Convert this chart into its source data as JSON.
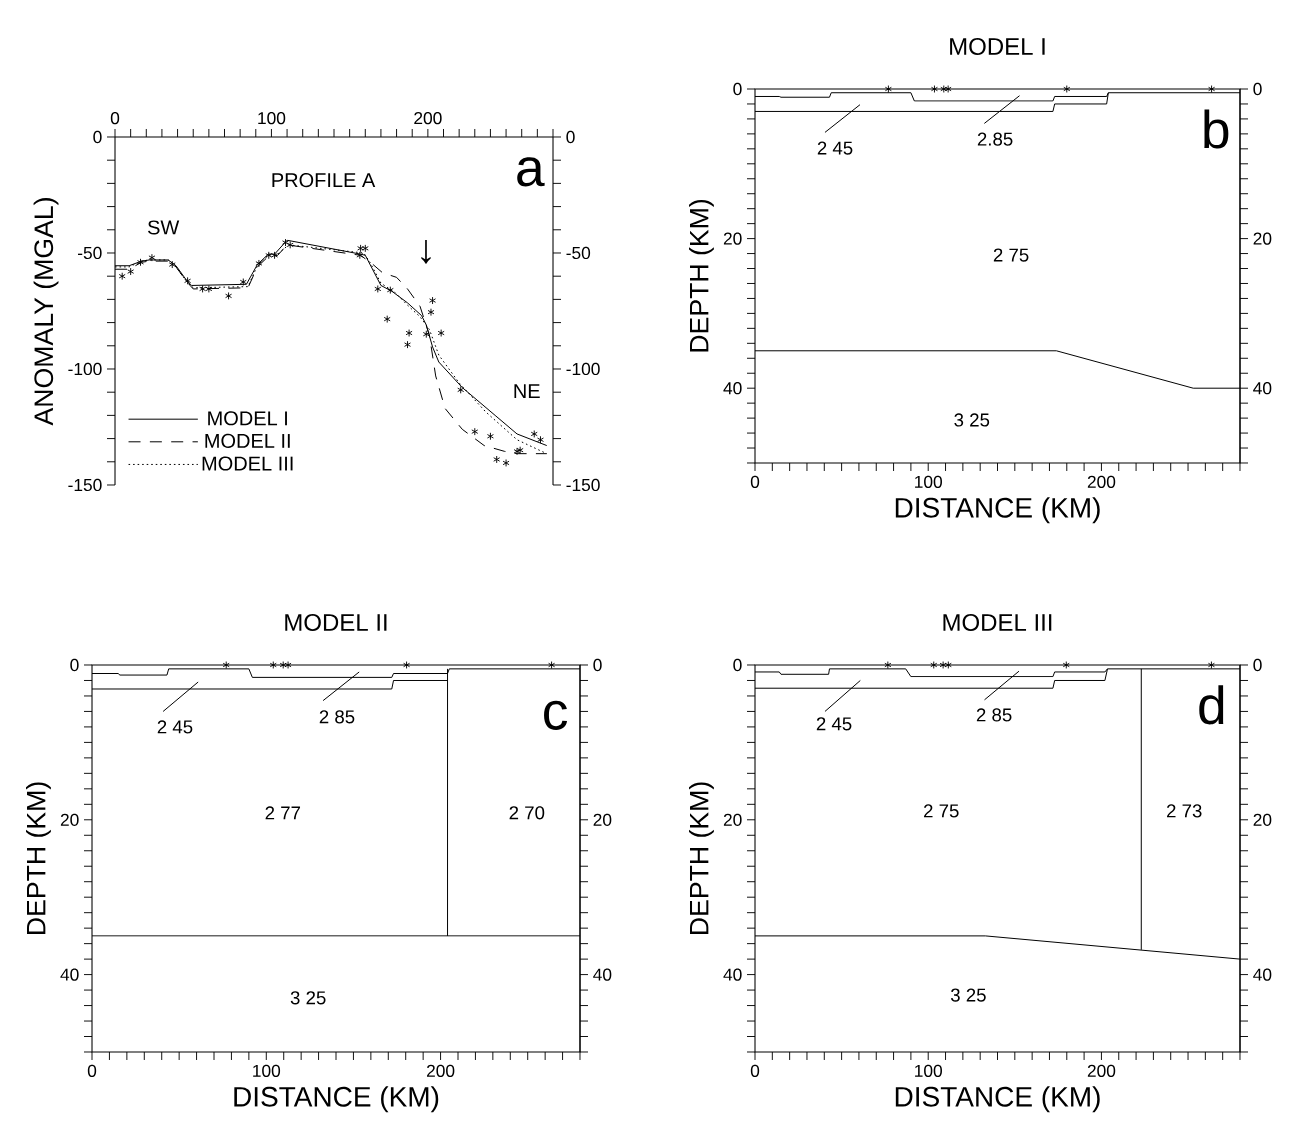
{
  "chart_data": [
    {
      "type": "line",
      "ylabel": "ANOMALY (MGAL)",
      "legend": "bottom left",
      "xlim": [
        0,
        280
      ],
      "xticks": [
        0,
        {
          "value": 10,
          "label": null
        },
        {
          "value": 20,
          "label": null
        },
        {
          "value": 30,
          "label": null
        },
        {
          "value": 40,
          "label": null
        },
        {
          "value": 50,
          "label": null
        },
        {
          "value": 60,
          "label": null
        },
        {
          "value": 70,
          "label": null
        },
        {
          "value": 80,
          "label": null
        },
        {
          "value": 90,
          "label": null
        },
        100,
        {
          "value": 110,
          "label": null
        },
        {
          "value": 120,
          "label": null
        },
        {
          "value": 130,
          "label": null
        },
        {
          "value": 140,
          "label": null
        },
        {
          "value": 150,
          "label": null
        },
        {
          "value": 160,
          "label": null
        },
        {
          "value": 170,
          "label": null
        },
        {
          "value": 180,
          "label": null
        },
        {
          "value": 190,
          "label": null
        },
        200,
        {
          "value": 210,
          "label": null
        },
        {
          "value": 220,
          "label": null
        },
        {
          "value": 230,
          "label": null
        },
        {
          "value": 240,
          "label": null
        },
        {
          "value": 250,
          "label": null
        },
        {
          "value": 260,
          "label": null
        },
        {
          "value": 270,
          "label": null
        },
        {
          "value": 280,
          "label": null
        }
      ],
      "ylim": [
        -150,
        0
      ],
      "yticks": [
        -150,
        {
          "value": -140,
          "label": null
        },
        {
          "value": -130,
          "label": null
        },
        {
          "value": -120,
          "label": null
        },
        {
          "value": -110,
          "label": null
        },
        -100,
        {
          "value": -90,
          "label": null
        },
        {
          "value": -80,
          "label": null
        },
        {
          "value": -70,
          "label": null
        },
        {
          "value": -60,
          "label": null
        },
        -50,
        {
          "value": -40,
          "label": null
        },
        {
          "value": -30,
          "label": null
        },
        {
          "value": -20,
          "label": null
        },
        {
          "value": -10,
          "label": null
        },
        0
      ],
      "y2lim": [
        -150,
        0
      ],
      "y2ticks": [
        -150,
        {
          "value": -140,
          "label": null
        },
        {
          "value": -130,
          "label": null
        },
        {
          "value": -120,
          "label": null
        },
        {
          "value": -110,
          "label": null
        },
        -100,
        {
          "value": -90,
          "label": null
        },
        {
          "value": -80,
          "label": null
        },
        {
          "value": -70,
          "label": null
        },
        {
          "value": -60,
          "label": null
        },
        -50,
        {
          "value": -40,
          "label": null
        },
        {
          "value": -30,
          "label": null
        },
        {
          "value": -20,
          "label": null
        },
        {
          "value": -10,
          "label": null
        },
        0
      ],
      "series": [
        {
          "name": "MODEL I",
          "color": "#000000",
          "line_style": "solid",
          "x": [
            0,
            9,
            17,
            22,
            34,
            39,
            46,
            49,
            84,
            91,
            98,
            102,
            110,
            157,
            160,
            170,
            177,
            187,
            196,
            199,
            203,
            207,
            222,
            243,
            257,
            276
          ],
          "values": [
            -55.5,
            -55.5,
            -53.5,
            -53,
            -53,
            -55.5,
            -62,
            -64,
            -63.5,
            -55,
            -50.5,
            -50.5,
            -44.5,
            -50.5,
            -51,
            -64,
            -66.5,
            -71.5,
            -77,
            -81,
            -90.5,
            -97,
            -108,
            -120,
            -128,
            -133
          ]
        },
        {
          "name": "MODEL II",
          "color": "#000000",
          "line_style": "dashed",
          "x": [
            0,
            9,
            17,
            22,
            34,
            39,
            46,
            50,
            85,
            91,
            98,
            104,
            110,
            157,
            165,
            171,
            180,
            187,
            195,
            201,
            205,
            211,
            222,
            236,
            249,
            257,
            276
          ],
          "values": [
            -57,
            -57,
            -54,
            -53.5,
            -53.5,
            -56,
            -62.5,
            -65.5,
            -65,
            -56,
            -51.5,
            -51,
            -46.5,
            -51,
            -55,
            -58.5,
            -60.5,
            -65.5,
            -73,
            -85.5,
            -103,
            -117,
            -126,
            -133,
            -135.5,
            -136.5,
            -136.5
          ]
        },
        {
          "name": "MODEL III",
          "color": "#000000",
          "line_style": "dotted",
          "x": [
            0,
            9,
            17,
            22,
            34,
            39,
            46,
            50,
            85,
            91,
            98,
            104,
            111,
            159,
            163,
            170,
            179,
            187,
            195,
            201,
            207,
            220,
            237,
            257,
            276
          ],
          "values": [
            -56,
            -56,
            -53.5,
            -53,
            -53,
            -56,
            -62.5,
            -65,
            -64.5,
            -55.5,
            -51,
            -50.5,
            -46.5,
            -50,
            -54,
            -63,
            -67,
            -72.5,
            -77.5,
            -83,
            -94,
            -106,
            -118.5,
            -130.5,
            -136.5
          ]
        },
        {
          "type": "scatter",
          "marker": "cross",
          "color": "#000000",
          "x": [
            4.6,
            10,
            16.3,
            23.6,
            36.6,
            46.4,
            56,
            60,
            72.6,
            82,
            92,
            98.3,
            102,
            109,
            112,
            157,
            160,
            156.5,
            168,
            176,
            174,
            188,
            187,
            203,
            202,
            208.5,
            199,
            221,
            230,
            240,
            244,
            250,
            257,
            259,
            268,
            272
          ],
          "values": [
            -60,
            -58,
            -54,
            -52,
            -55,
            -62,
            -65.5,
            -65.5,
            -68.5,
            -62.5,
            -54.5,
            -51,
            -51,
            -45.5,
            -46.5,
            -48,
            -48,
            -51,
            -65.5,
            -66,
            -78.5,
            -84.5,
            -89.5,
            -70.5,
            -75.5,
            -84.5,
            -85,
            -109,
            -127,
            -129,
            -139,
            -140.5,
            -135.5,
            -135,
            -128,
            -130.5
          ]
        }
      ],
      "annotations": [
        "a",
        "PROFILE A",
        "SW",
        "NE",
        "↓"
      ]
    },
    {
      "type": "line",
      "title": "MODEL I",
      "xlabel": "DISTANCE (KM)",
      "ylabel": "DEPTH (KM)",
      "xlim": [
        0,
        280
      ],
      "xticks": [
        0,
        {
          "value": 10,
          "label": null
        },
        {
          "value": 20,
          "label": null
        },
        {
          "value": 30,
          "label": null
        },
        {
          "value": 40,
          "label": null
        },
        {
          "value": 50,
          "label": null
        },
        {
          "value": 60,
          "label": null
        },
        {
          "value": 70,
          "label": null
        },
        {
          "value": 80,
          "label": null
        },
        {
          "value": 90,
          "label": null
        },
        100,
        {
          "value": 110,
          "label": null
        },
        {
          "value": 120,
          "label": null
        },
        {
          "value": 130,
          "label": null
        },
        {
          "value": 140,
          "label": null
        },
        {
          "value": 150,
          "label": null
        },
        {
          "value": 160,
          "label": null
        },
        {
          "value": 170,
          "label": null
        },
        {
          "value": 180,
          "label": null
        },
        {
          "value": 190,
          "label": null
        },
        200,
        {
          "value": 210,
          "label": null
        },
        {
          "value": 220,
          "label": null
        },
        {
          "value": 230,
          "label": null
        },
        {
          "value": 240,
          "label": null
        },
        {
          "value": 250,
          "label": null
        },
        {
          "value": 260,
          "label": null
        },
        {
          "value": 270,
          "label": null
        },
        {
          "value": 280,
          "label": null
        }
      ],
      "ylim": [
        50,
        0
      ],
      "yticks": [
        0,
        {
          "value": 2,
          "label": null
        },
        {
          "value": 4,
          "label": null
        },
        {
          "value": 6,
          "label": null
        },
        {
          "value": 8,
          "label": null
        },
        {
          "value": 10,
          "label": null
        },
        {
          "value": 12,
          "label": null
        },
        {
          "value": 14,
          "label": null
        },
        {
          "value": 16,
          "label": null
        },
        {
          "value": 18,
          "label": null
        },
        20,
        {
          "value": 22,
          "label": null
        },
        {
          "value": 24,
          "label": null
        },
        {
          "value": 26,
          "label": null
        },
        {
          "value": 28,
          "label": null
        },
        {
          "value": 30,
          "label": null
        },
        {
          "value": 32,
          "label": null
        },
        {
          "value": 34,
          "label": null
        },
        {
          "value": 36,
          "label": null
        },
        {
          "value": 38,
          "label": null
        },
        40,
        {
          "value": 42,
          "label": null
        },
        {
          "value": 44,
          "label": null
        },
        {
          "value": 46,
          "label": null
        },
        {
          "value": 48,
          "label": null
        },
        {
          "value": 50,
          "label": null
        }
      ],
      "y2lim": [
        50,
        0
      ],
      "y2ticks": [
        0,
        {
          "value": 2,
          "label": null
        },
        {
          "value": 4,
          "label": null
        },
        {
          "value": 6,
          "label": null
        },
        {
          "value": 8,
          "label": null
        },
        {
          "value": 10,
          "label": null
        },
        {
          "value": 12,
          "label": null
        },
        {
          "value": 14,
          "label": null
        },
        {
          "value": 16,
          "label": null
        },
        {
          "value": 18,
          "label": null
        },
        20,
        {
          "value": 22,
          "label": null
        },
        {
          "value": 24,
          "label": null
        },
        {
          "value": 26,
          "label": null
        },
        {
          "value": 28,
          "label": null
        },
        {
          "value": 30,
          "label": null
        },
        {
          "value": 32,
          "label": null
        },
        {
          "value": 34,
          "label": null
        },
        {
          "value": 36,
          "label": null
        },
        {
          "value": 38,
          "label": null
        },
        40,
        {
          "value": 42,
          "label": null
        },
        {
          "value": 44,
          "label": null
        },
        {
          "value": 46,
          "label": null
        },
        {
          "value": 48,
          "label": null
        },
        {
          "value": 50,
          "label": null
        }
      ],
      "series": [
        {
          "color": "#000000",
          "x": [
            0,
            14,
            15,
            43,
            44,
            90,
            92,
            172,
            173,
            203,
            204,
            280
          ],
          "values": [
            1,
            1,
            1.1,
            1.1,
            0.5,
            0.5,
            1.6,
            1.6,
            1,
            1,
            0.5,
            0.5
          ]
        },
        {
          "color": "#000000",
          "x": [
            0,
            172,
            173,
            203,
            204
          ],
          "values": [
            3,
            3,
            2,
            2,
            0.5
          ]
        },
        {
          "color": "#000000",
          "x": [
            0,
            174,
            253,
            280
          ],
          "values": [
            35,
            35,
            40,
            40
          ]
        },
        {
          "color": "#000000",
          "x": [
            40.4,
            60.6
          ],
          "values": [
            5.8,
            2.1
          ]
        },
        {
          "color": "#000000",
          "x": [
            132.4,
            152.7
          ],
          "values": [
            4.6,
            0.9
          ]
        },
        {
          "type": "scatter",
          "marker": "cross",
          "color": "#000000",
          "x": [
            77,
            103.6,
            109,
            111.5,
            180,
            263.6
          ],
          "values": [
            0,
            0,
            0,
            0,
            0,
            0
          ]
        }
      ],
      "annotations": [
        "b",
        "2 45",
        "2.85",
        "2 75",
        "3 25"
      ]
    },
    {
      "type": "line",
      "title": "MODEL II",
      "xlabel": "DISTANCE (KM)",
      "ylabel": "DEPTH (KM)",
      "xlim": [
        0,
        280
      ],
      "xticks": [
        0,
        {
          "value": 10,
          "label": null
        },
        {
          "value": 20,
          "label": null
        },
        {
          "value": 30,
          "label": null
        },
        {
          "value": 40,
          "label": null
        },
        {
          "value": 50,
          "label": null
        },
        {
          "value": 60,
          "label": null
        },
        {
          "value": 70,
          "label": null
        },
        {
          "value": 80,
          "label": null
        },
        {
          "value": 90,
          "label": null
        },
        100,
        {
          "value": 110,
          "label": null
        },
        {
          "value": 120,
          "label": null
        },
        {
          "value": 130,
          "label": null
        },
        {
          "value": 140,
          "label": null
        },
        {
          "value": 150,
          "label": null
        },
        {
          "value": 160,
          "label": null
        },
        {
          "value": 170,
          "label": null
        },
        {
          "value": 180,
          "label": null
        },
        {
          "value": 190,
          "label": null
        },
        200,
        {
          "value": 210,
          "label": null
        },
        {
          "value": 220,
          "label": null
        },
        {
          "value": 230,
          "label": null
        },
        {
          "value": 240,
          "label": null
        },
        {
          "value": 250,
          "label": null
        },
        {
          "value": 260,
          "label": null
        },
        {
          "value": 270,
          "label": null
        },
        {
          "value": 280,
          "label": null
        }
      ],
      "ylim": [
        50,
        0
      ],
      "yticks": [
        0,
        {
          "value": 2,
          "label": null
        },
        {
          "value": 4,
          "label": null
        },
        {
          "value": 6,
          "label": null
        },
        {
          "value": 8,
          "label": null
        },
        {
          "value": 10,
          "label": null
        },
        {
          "value": 12,
          "label": null
        },
        {
          "value": 14,
          "label": null
        },
        {
          "value": 16,
          "label": null
        },
        {
          "value": 18,
          "label": null
        },
        20,
        {
          "value": 22,
          "label": null
        },
        {
          "value": 24,
          "label": null
        },
        {
          "value": 26,
          "label": null
        },
        {
          "value": 28,
          "label": null
        },
        {
          "value": 30,
          "label": null
        },
        {
          "value": 32,
          "label": null
        },
        {
          "value": 34,
          "label": null
        },
        {
          "value": 36,
          "label": null
        },
        {
          "value": 38,
          "label": null
        },
        40,
        {
          "value": 42,
          "label": null
        },
        {
          "value": 44,
          "label": null
        },
        {
          "value": 46,
          "label": null
        },
        {
          "value": 48,
          "label": null
        },
        {
          "value": 50,
          "label": null
        }
      ],
      "y2lim": [
        50,
        0
      ],
      "y2ticks": [
        0,
        {
          "value": 2,
          "label": null
        },
        {
          "value": 4,
          "label": null
        },
        {
          "value": 6,
          "label": null
        },
        {
          "value": 8,
          "label": null
        },
        {
          "value": 10,
          "label": null
        },
        {
          "value": 12,
          "label": null
        },
        {
          "value": 14,
          "label": null
        },
        {
          "value": 16,
          "label": null
        },
        {
          "value": 18,
          "label": null
        },
        20,
        {
          "value": 22,
          "label": null
        },
        {
          "value": 24,
          "label": null
        },
        {
          "value": 26,
          "label": null
        },
        {
          "value": 28,
          "label": null
        },
        {
          "value": 30,
          "label": null
        },
        {
          "value": 32,
          "label": null
        },
        {
          "value": 34,
          "label": null
        },
        {
          "value": 36,
          "label": null
        },
        {
          "value": 38,
          "label": null
        },
        40,
        {
          "value": 42,
          "label": null
        },
        {
          "value": 44,
          "label": null
        },
        {
          "value": 46,
          "label": null
        },
        {
          "value": 48,
          "label": null
        },
        {
          "value": 50,
          "label": null
        }
      ],
      "series": [
        {
          "color": "#000000",
          "x": [
            0,
            15,
            16,
            43,
            44,
            90,
            92,
            172,
            173,
            204,
            205,
            280
          ],
          "values": [
            1.1,
            1.1,
            1.3,
            1.3,
            0.5,
            0.5,
            1.6,
            1.6,
            1.1,
            1.1,
            0.5,
            0.5
          ]
        },
        {
          "color": "#000000",
          "x": [
            0,
            172,
            173,
            204
          ],
          "values": [
            3.1,
            3.1,
            2,
            2
          ]
        },
        {
          "color": "#000000",
          "x": [
            204,
            204
          ],
          "values": [
            0.5,
            35
          ]
        },
        {
          "color": "#000000",
          "x": [
            0,
            280
          ],
          "values": [
            35,
            35
          ]
        },
        {
          "color": "#000000",
          "x": [
            40.8,
            60.9
          ],
          "values": [
            6,
            2.2
          ]
        },
        {
          "color": "#000000",
          "x": [
            132.6,
            153.3
          ],
          "values": [
            4.6,
            0.9
          ]
        },
        {
          "type": "scatter",
          "marker": "cross",
          "color": "#000000",
          "x": [
            77,
            104,
            109.7,
            112.5,
            180.5,
            263.7
          ],
          "values": [
            0,
            0,
            0,
            0,
            0,
            0
          ]
        }
      ],
      "annotations": [
        "c",
        "2 45",
        "2 85",
        "2 77",
        "2 70",
        "3 25"
      ]
    },
    {
      "type": "line",
      "title": "MODEL III",
      "xlabel": "DISTANCE (KM)",
      "ylabel": "DEPTH (KM)",
      "xlim": [
        0,
        280
      ],
      "xticks": [
        0,
        {
          "value": 10,
          "label": null
        },
        {
          "value": 20,
          "label": null
        },
        {
          "value": 30,
          "label": null
        },
        {
          "value": 40,
          "label": null
        },
        {
          "value": 50,
          "label": null
        },
        {
          "value": 60,
          "label": null
        },
        {
          "value": 70,
          "label": null
        },
        {
          "value": 80,
          "label": null
        },
        {
          "value": 90,
          "label": null
        },
        100,
        {
          "value": 110,
          "label": null
        },
        {
          "value": 120,
          "label": null
        },
        {
          "value": 130,
          "label": null
        },
        {
          "value": 140,
          "label": null
        },
        {
          "value": 150,
          "label": null
        },
        {
          "value": 160,
          "label": null
        },
        {
          "value": 170,
          "label": null
        },
        {
          "value": 180,
          "label": null
        },
        {
          "value": 190,
          "label": null
        },
        200,
        {
          "value": 210,
          "label": null
        },
        {
          "value": 220,
          "label": null
        },
        {
          "value": 230,
          "label": null
        },
        {
          "value": 240,
          "label": null
        },
        {
          "value": 250,
          "label": null
        },
        {
          "value": 260,
          "label": null
        },
        {
          "value": 270,
          "label": null
        },
        {
          "value": 280,
          "label": null
        }
      ],
      "ylim": [
        50,
        0
      ],
      "yticks": [
        0,
        {
          "value": 2,
          "label": null
        },
        {
          "value": 4,
          "label": null
        },
        {
          "value": 6,
          "label": null
        },
        {
          "value": 8,
          "label": null
        },
        {
          "value": 10,
          "label": null
        },
        {
          "value": 12,
          "label": null
        },
        {
          "value": 14,
          "label": null
        },
        {
          "value": 16,
          "label": null
        },
        {
          "value": 18,
          "label": null
        },
        20,
        {
          "value": 22,
          "label": null
        },
        {
          "value": 24,
          "label": null
        },
        {
          "value": 26,
          "label": null
        },
        {
          "value": 28,
          "label": null
        },
        {
          "value": 30,
          "label": null
        },
        {
          "value": 32,
          "label": null
        },
        {
          "value": 34,
          "label": null
        },
        {
          "value": 36,
          "label": null
        },
        {
          "value": 38,
          "label": null
        },
        40,
        {
          "value": 42,
          "label": null
        },
        {
          "value": 44,
          "label": null
        },
        {
          "value": 46,
          "label": null
        },
        {
          "value": 48,
          "label": null
        },
        {
          "value": 50,
          "label": null
        }
      ],
      "y2lim": [
        50,
        0
      ],
      "y2ticks": [
        0,
        {
          "value": 2,
          "label": null
        },
        {
          "value": 4,
          "label": null
        },
        {
          "value": 6,
          "label": null
        },
        {
          "value": 8,
          "label": null
        },
        {
          "value": 10,
          "label": null
        },
        {
          "value": 12,
          "label": null
        },
        {
          "value": 14,
          "label": null
        },
        {
          "value": 16,
          "label": null
        },
        {
          "value": 18,
          "label": null
        },
        20,
        {
          "value": 22,
          "label": null
        },
        {
          "value": 24,
          "label": null
        },
        {
          "value": 26,
          "label": null
        },
        {
          "value": 28,
          "label": null
        },
        {
          "value": 30,
          "label": null
        },
        {
          "value": 32,
          "label": null
        },
        {
          "value": 34,
          "label": null
        },
        {
          "value": 36,
          "label": null
        },
        {
          "value": 38,
          "label": null
        },
        40,
        {
          "value": 42,
          "label": null
        },
        {
          "value": 44,
          "label": null
        },
        {
          "value": 46,
          "label": null
        },
        {
          "value": 48,
          "label": null
        },
        {
          "value": 50,
          "label": null
        }
      ],
      "series": [
        {
          "color": "#000000",
          "x": [
            0,
            14,
            15,
            42.5,
            43,
            87,
            90,
            172,
            173,
            202,
            203.5,
            280
          ],
          "values": [
            0.9,
            0.9,
            1.2,
            1.2,
            0.5,
            0.5,
            1.5,
            1.5,
            0.9,
            0.9,
            0.5,
            0.5
          ]
        },
        {
          "color": "#000000",
          "x": [
            0,
            172,
            173,
            202,
            203.5
          ],
          "values": [
            3,
            3,
            2,
            2,
            0.5
          ]
        },
        {
          "color": "#000000",
          "x": [
            223,
            223
          ],
          "values": [
            0.5,
            36.8
          ]
        },
        {
          "color": "#000000",
          "x": [
            0,
            133,
            280
          ],
          "values": [
            35,
            35,
            38
          ]
        },
        {
          "color": "#000000",
          "x": [
            40.4,
            60.8
          ],
          "values": [
            6,
            2
          ]
        },
        {
          "color": "#000000",
          "x": [
            132.5,
            152.4
          ],
          "values": [
            4.5,
            0.8
          ]
        },
        {
          "type": "scatter",
          "marker": "cross",
          "color": "#000000",
          "x": [
            76.7,
            103.2,
            108.6,
            111.6,
            179.7,
            263.5
          ],
          "values": [
            0,
            0,
            0,
            0,
            0,
            0
          ]
        }
      ],
      "annotations": [
        "d",
        "2 45",
        "2 85",
        "2 75",
        "2 73",
        "3 25"
      ]
    }
  ]
}
